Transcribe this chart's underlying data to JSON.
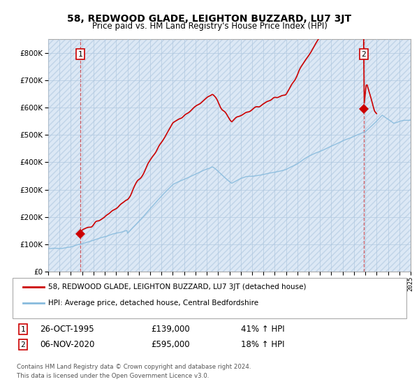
{
  "title": "58, REDWOOD GLADE, LEIGHTON BUZZARD, LU7 3JT",
  "subtitle": "Price paid vs. HM Land Registry's House Price Index (HPI)",
  "legend_line1": "58, REDWOOD GLADE, LEIGHTON BUZZARD, LU7 3JT (detached house)",
  "legend_line2": "HPI: Average price, detached house, Central Bedfordshire",
  "transaction1_label": "1",
  "transaction1_date": "26-OCT-1995",
  "transaction1_price": "£139,000",
  "transaction1_hpi": "41% ↑ HPI",
  "transaction2_label": "2",
  "transaction2_date": "06-NOV-2020",
  "transaction2_price": "£595,000",
  "transaction2_hpi": "18% ↑ HPI",
  "footnote": "Contains HM Land Registry data © Crown copyright and database right 2024.\nThis data is licensed under the Open Government Licence v3.0.",
  "price_color": "#cc0000",
  "hpi_color": "#88bbdd",
  "bg_color": "#dce8f5",
  "hatch_color": "#c0d4e8",
  "grid_color": "#b0c8e0",
  "ylim_min": 0,
  "ylim_max": 850000,
  "x_start_year": 1993,
  "x_end_year": 2025,
  "transaction1_year": 1995.82,
  "transaction1_value": 139000,
  "transaction2_year": 2020.85,
  "transaction2_value": 595000
}
